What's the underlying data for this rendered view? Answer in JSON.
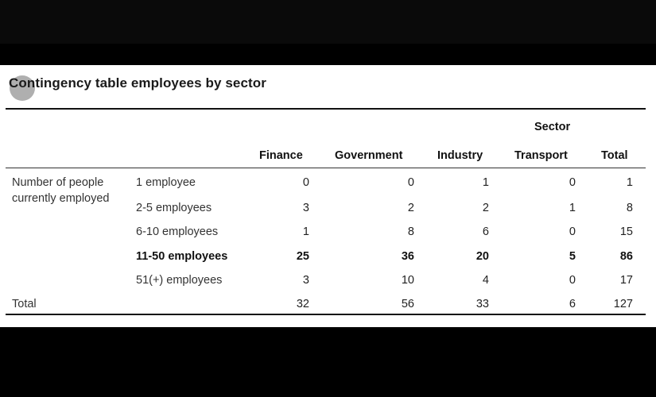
{
  "title": "Contingency table employees by sector",
  "column_group_label": "Sector",
  "columns": [
    "Finance",
    "Government",
    "Industry",
    "Transport",
    "Total"
  ],
  "row_group_label": "Number of people currently employed",
  "rows": [
    {
      "label": "1 employee",
      "values": [
        "0",
        "0",
        "1",
        "0",
        "1"
      ]
    },
    {
      "label": "2-5 employees",
      "values": [
        "3",
        "2",
        "2",
        "1",
        "8"
      ]
    },
    {
      "label": "6-10 employees",
      "values": [
        "1",
        "8",
        "6",
        "0",
        "15"
      ]
    },
    {
      "label": "11-50 employees",
      "values": [
        "25",
        "36",
        "20",
        "5",
        "86"
      ]
    },
    {
      "label": "51(+) employees",
      "values": [
        "3",
        "10",
        "4",
        "0",
        "17"
      ]
    }
  ],
  "total_row": {
    "label": "Total",
    "values": [
      "32",
      "56",
      "33",
      "6",
      "127"
    ]
  }
}
